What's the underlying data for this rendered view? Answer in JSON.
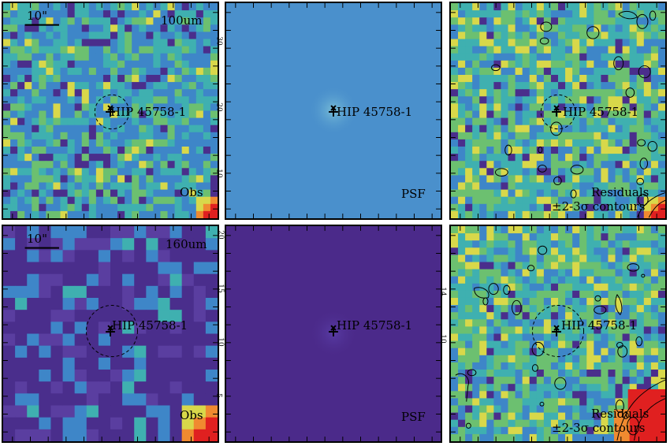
{
  "panels": [
    {
      "id": "obs-100",
      "band_label": "100um",
      "scale_label": "10\"",
      "source_label": "HIP 45758-1",
      "corner_label": "Obs",
      "kind": "obs",
      "palette": "blue",
      "circle": true,
      "contours": false
    },
    {
      "id": "psf-100",
      "band_label": "",
      "scale_label": "",
      "source_label": "HIP 45758-1",
      "corner_label": "PSF",
      "kind": "psf",
      "palette": "flatblue",
      "circle": false,
      "contours": false
    },
    {
      "id": "res-100",
      "band_label": "",
      "scale_label": "",
      "source_label": "HIP 45758-1",
      "corner_label": "Residuals",
      "corner_label2": "±2-3σ contours",
      "kind": "res",
      "palette": "green",
      "circle": true,
      "contours": true
    },
    {
      "id": "obs-160",
      "band_label": "160um",
      "scale_label": "10\"",
      "source_label": "HIP 45758-1",
      "corner_label": "Obs",
      "kind": "obs",
      "palette": "purple",
      "circle": true,
      "contours": false
    },
    {
      "id": "psf-160",
      "band_label": "",
      "scale_label": "",
      "source_label": "HIP 45758-1",
      "corner_label": "PSF",
      "kind": "psf",
      "palette": "flatpurple",
      "circle": false,
      "contours": false
    },
    {
      "id": "res-160",
      "band_label": "",
      "scale_label": "",
      "source_label": "HIP 45758-1",
      "corner_label": "Residuals",
      "corner_label2": "±2-3σ contours",
      "kind": "res",
      "palette": "green",
      "circle": true,
      "contours": true
    }
  ],
  "axis_ticks_psf_100": [
    "30",
    "20",
    "10"
  ],
  "axis_ticks_obs_160": [
    "20",
    "15",
    "10",
    "5"
  ],
  "axis_ticks_psf_160": [
    "14",
    "10"
  ],
  "colors": {
    "purple": "#4a2e8c",
    "blue": "#3e86c8",
    "teal": "#3fb0b0",
    "green": "#6cc070",
    "yellow": "#d8d84a",
    "orange": "#f08a30",
    "red": "#e02020",
    "psf_blue": "#4a90cc",
    "psf_purple": "#4b2a8a"
  }
}
